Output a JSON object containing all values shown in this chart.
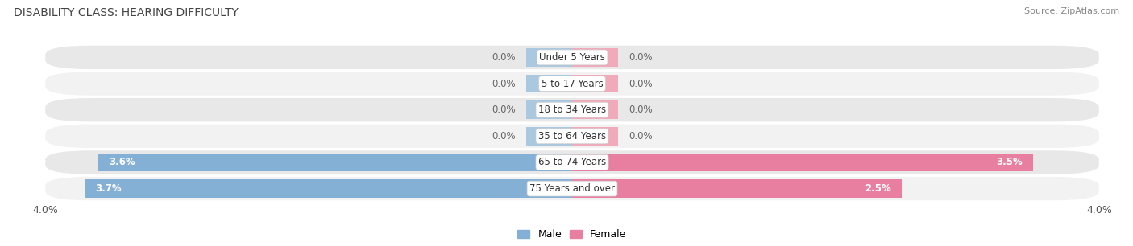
{
  "title": "DISABILITY CLASS: HEARING DIFFICULTY",
  "source": "Source: ZipAtlas.com",
  "categories": [
    "Under 5 Years",
    "5 to 17 Years",
    "18 to 34 Years",
    "35 to 64 Years",
    "65 to 74 Years",
    "75 Years and over"
  ],
  "male_values": [
    0.0,
    0.0,
    0.0,
    0.0,
    3.6,
    3.7
  ],
  "female_values": [
    0.0,
    0.0,
    0.0,
    0.0,
    3.5,
    2.5
  ],
  "x_max": 4.0,
  "male_color": "#85b0d6",
  "female_color": "#e87fa0",
  "male_stub_color": "#aac8e0",
  "female_stub_color": "#f0aaba",
  "bg_colors": [
    "#e8e8e8",
    "#f2f2f2",
    "#e8e8e8",
    "#f2f2f2",
    "#e8e8e8",
    "#f2f2f2"
  ],
  "title_fontsize": 10,
  "source_fontsize": 8,
  "bar_label_fontsize": 8.5,
  "axis_label_fontsize": 9,
  "category_fontsize": 8.5,
  "legend_fontsize": 9,
  "stub_size": 0.35
}
